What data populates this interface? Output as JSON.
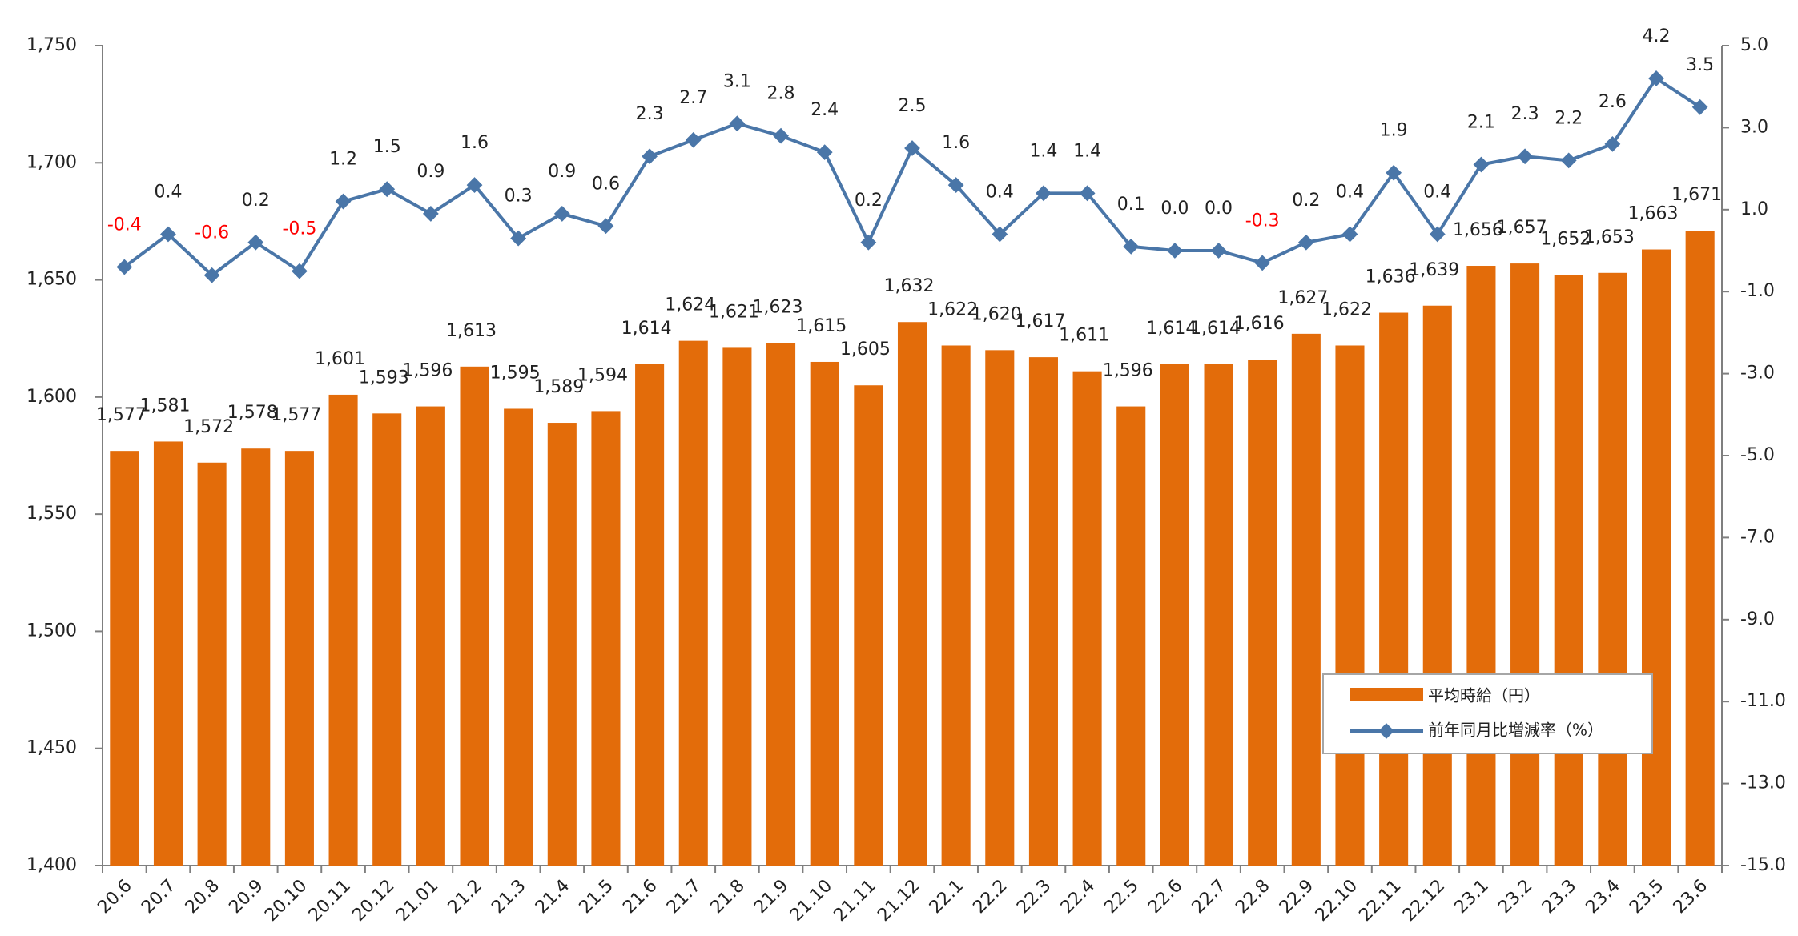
{
  "chart_data": {
    "type": "bar",
    "categories": [
      "20.6",
      "20.7",
      "20.8",
      "20.9",
      "20.10",
      "20.11",
      "20.12",
      "21.01",
      "21.2",
      "21.3",
      "21.4",
      "21.5",
      "21.6",
      "21.7",
      "21.8",
      "21.9",
      "21.10",
      "21.11",
      "21.12",
      "22.1",
      "22.2",
      "22.3",
      "22.4",
      "22.5",
      "22.6",
      "22.7",
      "22.8",
      "22.9",
      "22.10",
      "22.11",
      "22.12",
      "23.1",
      "23.2",
      "23.3",
      "23.4",
      "23.5",
      "23.6"
    ],
    "series": [
      {
        "name": "平均時給（円）",
        "type": "bar",
        "axis": "left",
        "color": "#e36c0a",
        "values": [
          1577,
          1581,
          1572,
          1578,
          1577,
          1601,
          1593,
          1596,
          1613,
          1595,
          1589,
          1594,
          1614,
          1624,
          1621,
          1623,
          1615,
          1605,
          1632,
          1622,
          1620,
          1617,
          1611,
          1596,
          1614,
          1614,
          1616,
          1627,
          1622,
          1636,
          1639,
          1656,
          1657,
          1652,
          1653,
          1663,
          1671
        ],
        "labels": [
          "1,577",
          "1,581",
          "1,572",
          "1,578",
          "1,577",
          "1,601",
          "1,593",
          "1,596",
          "1,613",
          "1,595",
          "1,589",
          "1,594",
          "1,614",
          "1,624",
          "1,621",
          "1,623",
          "1,615",
          "1,605",
          "1,632",
          "1,622",
          "1,620",
          "1,617",
          "1,611",
          "1,596",
          "1,614",
          "1,614",
          "1,616",
          "1,627",
          "1,622",
          "1,636",
          "1,639",
          "1,656",
          "1,657",
          "1,652",
          "1,653",
          "1,663",
          "1,671"
        ]
      },
      {
        "name": "前年同月比増減率（%）",
        "type": "line",
        "axis": "right",
        "color": "#4a76a8",
        "values": [
          -0.4,
          0.4,
          -0.6,
          0.2,
          -0.5,
          1.2,
          1.5,
          0.9,
          1.6,
          0.3,
          0.9,
          0.6,
          2.3,
          2.7,
          3.1,
          2.8,
          2.4,
          0.2,
          2.5,
          1.6,
          0.4,
          1.4,
          1.4,
          0.1,
          0.0,
          0.0,
          -0.3,
          0.2,
          0.4,
          1.9,
          0.4,
          2.1,
          2.3,
          2.2,
          2.6,
          4.2,
          3.5
        ],
        "labels": [
          "-0.4",
          "0.4",
          "-0.6",
          "0.2",
          "-0.5",
          "1.2",
          "1.5",
          "0.9",
          "1.6",
          "0.3",
          "0.9",
          "0.6",
          "2.3",
          "2.7",
          "3.1",
          "2.8",
          "2.4",
          "0.2",
          "2.5",
          "1.6",
          "0.4",
          "1.4",
          "1.4",
          "0.1",
          "0.0",
          "0.0",
          "-0.3",
          "0.2",
          "0.4",
          "1.9",
          "0.4",
          "2.1",
          "2.3",
          "2.2",
          "2.6",
          "4.2",
          "3.5"
        ],
        "negative_label_color": "#ff0000"
      }
    ],
    "y_left": {
      "ylim": [
        1400,
        1750
      ],
      "ticks": [
        "1,400",
        "1,450",
        "1,500",
        "1,550",
        "1,600",
        "1,650",
        "1,700",
        "1,750"
      ],
      "tick_values": [
        1400,
        1450,
        1500,
        1550,
        1600,
        1650,
        1700,
        1750
      ]
    },
    "y_right": {
      "ylim": [
        -15.0,
        5.0
      ],
      "ticks": [
        "-15.0",
        "-13.0",
        "-11.0",
        "-9.0",
        "-7.0",
        "-5.0",
        "-3.0",
        "-1.0",
        "1.0",
        "3.0",
        "5.0"
      ],
      "tick_values": [
        -15,
        -13,
        -11,
        -9,
        -7,
        -5,
        -3,
        -1,
        1,
        3,
        5
      ]
    },
    "legend": {
      "position": "bottom-right",
      "items": [
        {
          "label": "平均時給（円）",
          "kind": "bar",
          "color": "#e36c0a"
        },
        {
          "label": "前年同月比増減率（%）",
          "kind": "line",
          "color": "#4a76a8"
        }
      ]
    }
  }
}
